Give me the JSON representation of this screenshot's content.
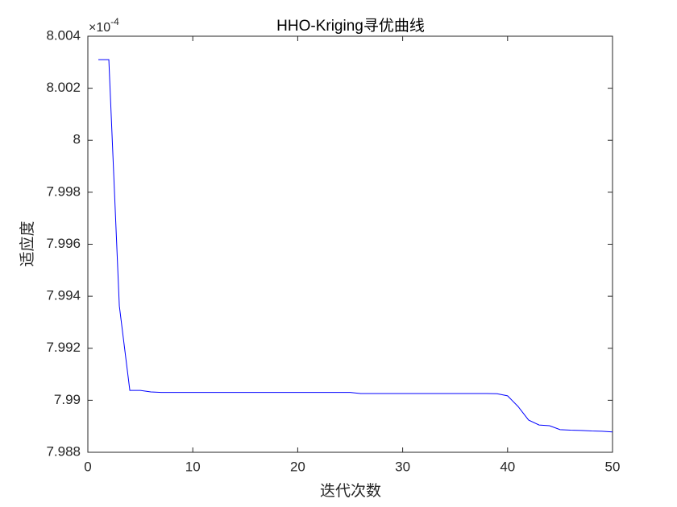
{
  "chart_data": {
    "type": "line",
    "title": "HHO-Kriging寻优曲线",
    "x_label": "迭代次数",
    "y_label": "适应度",
    "y_multiplier": {
      "base": "×10",
      "exponent": "-4"
    },
    "x": [
      1,
      2,
      3,
      4,
      5,
      6,
      7,
      8,
      9,
      10,
      11,
      12,
      13,
      14,
      15,
      16,
      17,
      18,
      19,
      20,
      21,
      22,
      23,
      24,
      25,
      26,
      27,
      28,
      29,
      30,
      31,
      32,
      33,
      34,
      35,
      36,
      37,
      38,
      39,
      40,
      41,
      42,
      43,
      44,
      45,
      46,
      47,
      48,
      49,
      50
    ],
    "series": [
      {
        "color": "#0000ff",
        "values": [
          8.0031,
          8.0031,
          7.99363,
          7.99038,
          7.99038,
          7.99032,
          7.9903,
          7.9903,
          7.9903,
          7.9903,
          7.9903,
          7.9903,
          7.9903,
          7.9903,
          7.9903,
          7.9903,
          7.9903,
          7.9903,
          7.9903,
          7.9903,
          7.9903,
          7.9903,
          7.9903,
          7.9903,
          7.9903,
          7.99026,
          7.99026,
          7.99026,
          7.99026,
          7.99026,
          7.99026,
          7.99026,
          7.99026,
          7.99026,
          7.99026,
          7.99026,
          7.99026,
          7.99026,
          7.99025,
          7.99017,
          7.98976,
          7.98924,
          7.98905,
          7.98902,
          7.98887,
          7.98885,
          7.98884,
          7.98882,
          7.98881,
          7.98878
        ]
      }
    ],
    "xlim": [
      0,
      50
    ],
    "xticks": [
      0,
      10,
      20,
      30,
      40,
      50
    ],
    "ylim": [
      7.988,
      8.004
    ],
    "yticks": [
      7.988,
      7.99,
      7.992,
      7.994,
      7.996,
      7.998,
      8,
      8.002,
      8.004
    ]
  }
}
